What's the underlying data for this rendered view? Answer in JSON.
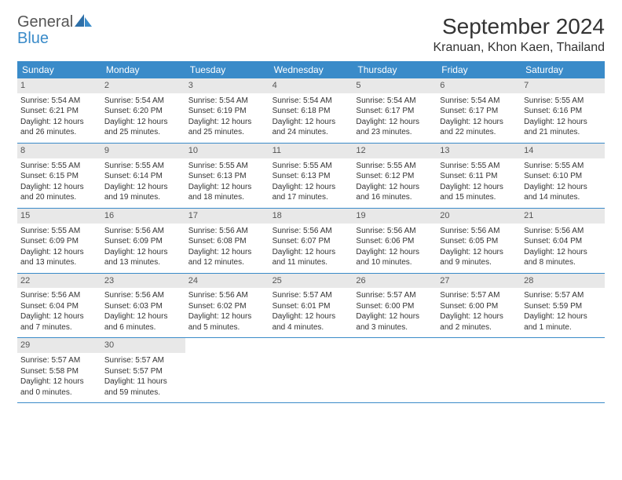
{
  "logo": {
    "text1": "General",
    "text2": "Blue"
  },
  "title": "September 2024",
  "location": "Kranuan, Khon Kaen, Thailand",
  "header_bg": "#3a8bc9",
  "header_fg": "#ffffff",
  "daynum_bg": "#e8e8e8",
  "rule_color": "#3a8bc9",
  "days_of_week": [
    "Sunday",
    "Monday",
    "Tuesday",
    "Wednesday",
    "Thursday",
    "Friday",
    "Saturday"
  ],
  "weeks": [
    [
      {
        "n": "1",
        "sr": "Sunrise: 5:54 AM",
        "ss": "Sunset: 6:21 PM",
        "d1": "Daylight: 12 hours",
        "d2": "and 26 minutes."
      },
      {
        "n": "2",
        "sr": "Sunrise: 5:54 AM",
        "ss": "Sunset: 6:20 PM",
        "d1": "Daylight: 12 hours",
        "d2": "and 25 minutes."
      },
      {
        "n": "3",
        "sr": "Sunrise: 5:54 AM",
        "ss": "Sunset: 6:19 PM",
        "d1": "Daylight: 12 hours",
        "d2": "and 25 minutes."
      },
      {
        "n": "4",
        "sr": "Sunrise: 5:54 AM",
        "ss": "Sunset: 6:18 PM",
        "d1": "Daylight: 12 hours",
        "d2": "and 24 minutes."
      },
      {
        "n": "5",
        "sr": "Sunrise: 5:54 AM",
        "ss": "Sunset: 6:17 PM",
        "d1": "Daylight: 12 hours",
        "d2": "and 23 minutes."
      },
      {
        "n": "6",
        "sr": "Sunrise: 5:54 AM",
        "ss": "Sunset: 6:17 PM",
        "d1": "Daylight: 12 hours",
        "d2": "and 22 minutes."
      },
      {
        "n": "7",
        "sr": "Sunrise: 5:55 AM",
        "ss": "Sunset: 6:16 PM",
        "d1": "Daylight: 12 hours",
        "d2": "and 21 minutes."
      }
    ],
    [
      {
        "n": "8",
        "sr": "Sunrise: 5:55 AM",
        "ss": "Sunset: 6:15 PM",
        "d1": "Daylight: 12 hours",
        "d2": "and 20 minutes."
      },
      {
        "n": "9",
        "sr": "Sunrise: 5:55 AM",
        "ss": "Sunset: 6:14 PM",
        "d1": "Daylight: 12 hours",
        "d2": "and 19 minutes."
      },
      {
        "n": "10",
        "sr": "Sunrise: 5:55 AM",
        "ss": "Sunset: 6:13 PM",
        "d1": "Daylight: 12 hours",
        "d2": "and 18 minutes."
      },
      {
        "n": "11",
        "sr": "Sunrise: 5:55 AM",
        "ss": "Sunset: 6:13 PM",
        "d1": "Daylight: 12 hours",
        "d2": "and 17 minutes."
      },
      {
        "n": "12",
        "sr": "Sunrise: 5:55 AM",
        "ss": "Sunset: 6:12 PM",
        "d1": "Daylight: 12 hours",
        "d2": "and 16 minutes."
      },
      {
        "n": "13",
        "sr": "Sunrise: 5:55 AM",
        "ss": "Sunset: 6:11 PM",
        "d1": "Daylight: 12 hours",
        "d2": "and 15 minutes."
      },
      {
        "n": "14",
        "sr": "Sunrise: 5:55 AM",
        "ss": "Sunset: 6:10 PM",
        "d1": "Daylight: 12 hours",
        "d2": "and 14 minutes."
      }
    ],
    [
      {
        "n": "15",
        "sr": "Sunrise: 5:55 AM",
        "ss": "Sunset: 6:09 PM",
        "d1": "Daylight: 12 hours",
        "d2": "and 13 minutes."
      },
      {
        "n": "16",
        "sr": "Sunrise: 5:56 AM",
        "ss": "Sunset: 6:09 PM",
        "d1": "Daylight: 12 hours",
        "d2": "and 13 minutes."
      },
      {
        "n": "17",
        "sr": "Sunrise: 5:56 AM",
        "ss": "Sunset: 6:08 PM",
        "d1": "Daylight: 12 hours",
        "d2": "and 12 minutes."
      },
      {
        "n": "18",
        "sr": "Sunrise: 5:56 AM",
        "ss": "Sunset: 6:07 PM",
        "d1": "Daylight: 12 hours",
        "d2": "and 11 minutes."
      },
      {
        "n": "19",
        "sr": "Sunrise: 5:56 AM",
        "ss": "Sunset: 6:06 PM",
        "d1": "Daylight: 12 hours",
        "d2": "and 10 minutes."
      },
      {
        "n": "20",
        "sr": "Sunrise: 5:56 AM",
        "ss": "Sunset: 6:05 PM",
        "d1": "Daylight: 12 hours",
        "d2": "and 9 minutes."
      },
      {
        "n": "21",
        "sr": "Sunrise: 5:56 AM",
        "ss": "Sunset: 6:04 PM",
        "d1": "Daylight: 12 hours",
        "d2": "and 8 minutes."
      }
    ],
    [
      {
        "n": "22",
        "sr": "Sunrise: 5:56 AM",
        "ss": "Sunset: 6:04 PM",
        "d1": "Daylight: 12 hours",
        "d2": "and 7 minutes."
      },
      {
        "n": "23",
        "sr": "Sunrise: 5:56 AM",
        "ss": "Sunset: 6:03 PM",
        "d1": "Daylight: 12 hours",
        "d2": "and 6 minutes."
      },
      {
        "n": "24",
        "sr": "Sunrise: 5:56 AM",
        "ss": "Sunset: 6:02 PM",
        "d1": "Daylight: 12 hours",
        "d2": "and 5 minutes."
      },
      {
        "n": "25",
        "sr": "Sunrise: 5:57 AM",
        "ss": "Sunset: 6:01 PM",
        "d1": "Daylight: 12 hours",
        "d2": "and 4 minutes."
      },
      {
        "n": "26",
        "sr": "Sunrise: 5:57 AM",
        "ss": "Sunset: 6:00 PM",
        "d1": "Daylight: 12 hours",
        "d2": "and 3 minutes."
      },
      {
        "n": "27",
        "sr": "Sunrise: 5:57 AM",
        "ss": "Sunset: 6:00 PM",
        "d1": "Daylight: 12 hours",
        "d2": "and 2 minutes."
      },
      {
        "n": "28",
        "sr": "Sunrise: 5:57 AM",
        "ss": "Sunset: 5:59 PM",
        "d1": "Daylight: 12 hours",
        "d2": "and 1 minute."
      }
    ],
    [
      {
        "n": "29",
        "sr": "Sunrise: 5:57 AM",
        "ss": "Sunset: 5:58 PM",
        "d1": "Daylight: 12 hours",
        "d2": "and 0 minutes."
      },
      {
        "n": "30",
        "sr": "Sunrise: 5:57 AM",
        "ss": "Sunset: 5:57 PM",
        "d1": "Daylight: 11 hours",
        "d2": "and 59 minutes."
      },
      {
        "empty": true
      },
      {
        "empty": true
      },
      {
        "empty": true
      },
      {
        "empty": true
      },
      {
        "empty": true
      }
    ]
  ]
}
